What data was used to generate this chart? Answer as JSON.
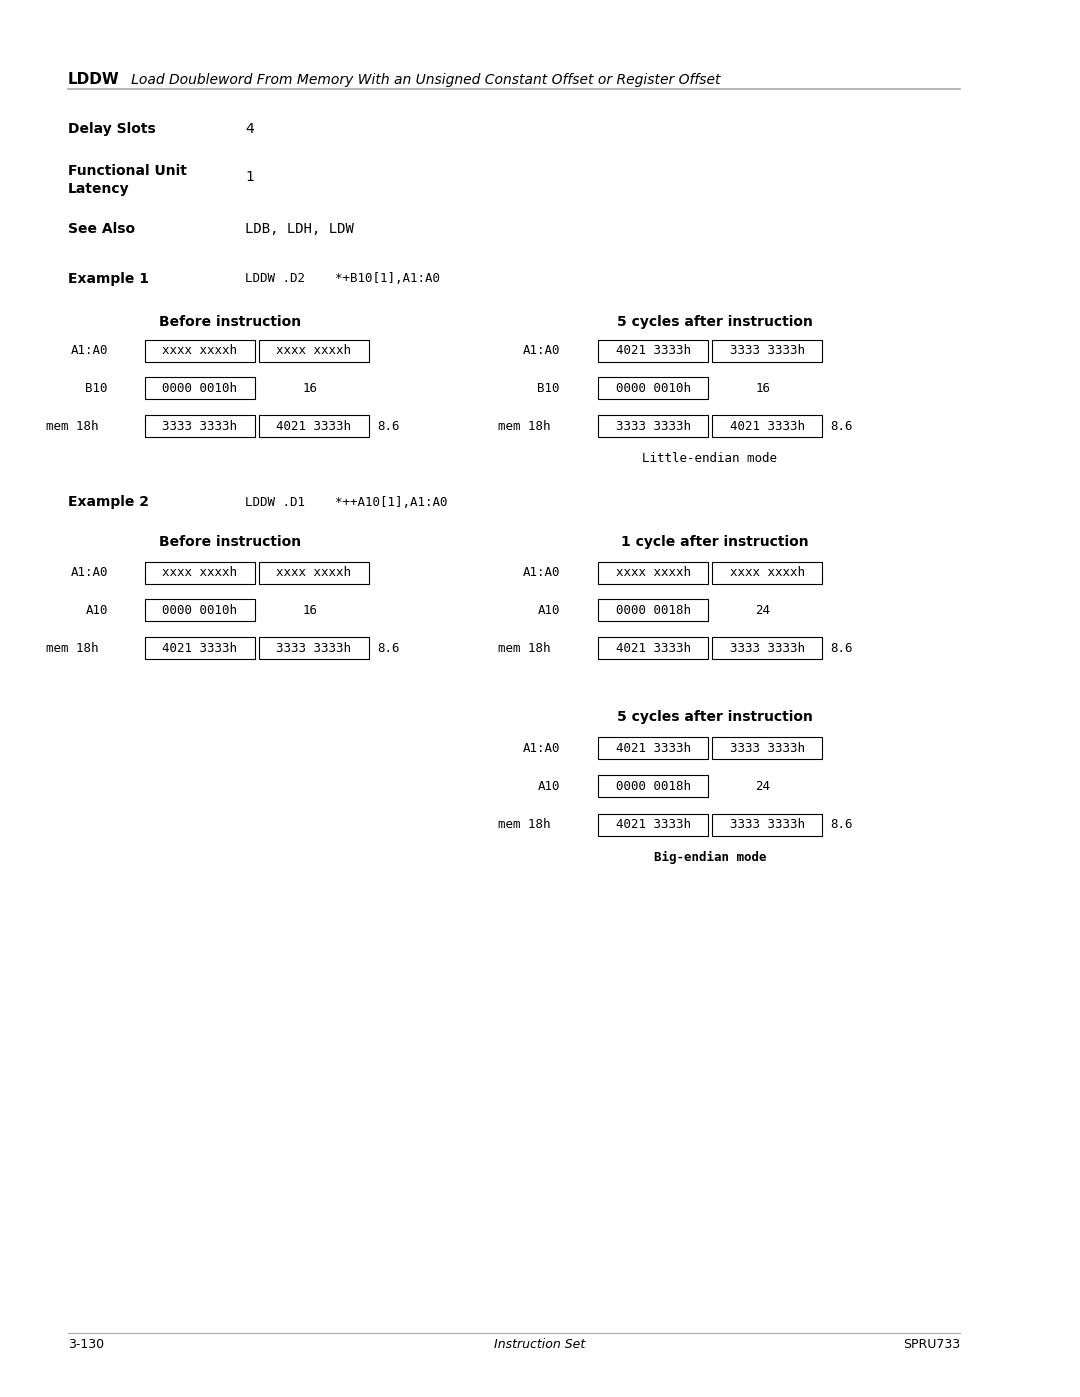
{
  "title_bold": "LDDW",
  "title_rest": "   Load Doubleword From Memory With an Unsigned Constant Offset or Register Offset",
  "delay_slots_label": "Delay Slots",
  "delay_slots_val": "4",
  "func_unit_label": "Functional Unit\nLatency",
  "func_unit_val": "1",
  "see_also_label": "See Also",
  "see_also_val": "LDB, LDH, LDW",
  "ex1_label": "Example 1",
  "ex1_code": "LDDW .D2    *+B10[1],A1:A0",
  "ex2_label": "Example 2",
  "ex2_code": "LDDW .D1    *++A10[1],A1:A0",
  "before_instr": "Before instruction",
  "cycles5_after": "5 cycles after instruction",
  "cycle1_after": "1 cycle after instruction",
  "little_endian": "Little-endian mode",
  "big_endian": "Big-endian mode",
  "footer_left": "3-130",
  "footer_mid": "Instruction Set",
  "footer_right": "SPRU733",
  "bg_color": "#ffffff",
  "text_color": "#000000",
  "box_color": "#000000",
  "mono_font": "monospace",
  "sans_font": "DejaVu Sans"
}
